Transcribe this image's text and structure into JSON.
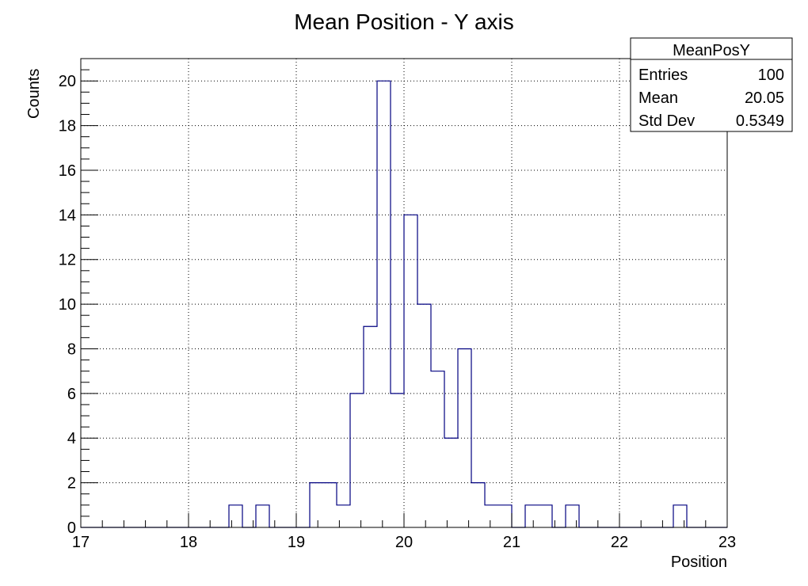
{
  "chart_data": {
    "type": "histogram",
    "title": "Mean Position - Y axis",
    "xlabel": "Position",
    "ylabel": "Counts",
    "xlim": [
      17,
      23
    ],
    "ylim": [
      0,
      21
    ],
    "grid": true,
    "line_color": "#000080",
    "x_ticks": [
      "17",
      "18",
      "19",
      "20",
      "21",
      "22",
      "23"
    ],
    "y_ticks": [
      "0",
      "2",
      "4",
      "6",
      "8",
      "10",
      "12",
      "14",
      "16",
      "18",
      "20"
    ],
    "bin_width": 0.125,
    "bins": [
      {
        "x": 18.375,
        "count": 1
      },
      {
        "x": 18.625,
        "count": 1
      },
      {
        "x": 19.125,
        "count": 2
      },
      {
        "x": 19.25,
        "count": 2
      },
      {
        "x": 19.375,
        "count": 1
      },
      {
        "x": 19.5,
        "count": 6
      },
      {
        "x": 19.625,
        "count": 9
      },
      {
        "x": 19.75,
        "count": 20
      },
      {
        "x": 19.875,
        "count": 6
      },
      {
        "x": 20.0,
        "count": 14
      },
      {
        "x": 20.125,
        "count": 10
      },
      {
        "x": 20.25,
        "count": 7
      },
      {
        "x": 20.375,
        "count": 4
      },
      {
        "x": 20.5,
        "count": 8
      },
      {
        "x": 20.625,
        "count": 2
      },
      {
        "x": 20.75,
        "count": 1
      },
      {
        "x": 20.875,
        "count": 1
      },
      {
        "x": 21.125,
        "count": 1
      },
      {
        "x": 21.25,
        "count": 1
      },
      {
        "x": 21.5,
        "count": 1
      },
      {
        "x": 22.5,
        "count": 1
      }
    ],
    "stats_box": {
      "name": "MeanPosY",
      "rows": [
        {
          "label": "Entries",
          "value": "100"
        },
        {
          "label": "Mean",
          "value": "20.05"
        },
        {
          "label": "Std Dev",
          "value": "0.5349"
        }
      ]
    }
  }
}
